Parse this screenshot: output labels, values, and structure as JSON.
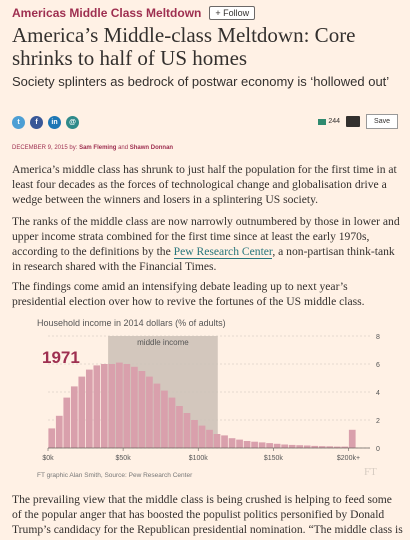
{
  "topic": "Americas Middle Class Meltdown",
  "follow_label": "+ Follow",
  "headline": "America’s Middle-class Meltdown: Core shrinks to half of US homes",
  "standfirst": "Society splinters as bedrock of postwar economy is ‘hollowed out’",
  "share_icons": [
    "twitter-icon",
    "facebook-icon",
    "linkedin-icon",
    "email-icon"
  ],
  "comment_count": "244",
  "save_label": "Save",
  "date": "DECEMBER 9, 2015",
  "by": "by:",
  "author1": "Sam Fleming",
  "and": "and",
  "author2": "Shawn Donnan",
  "paragraphs": {
    "p1": "America’s middle class has shrunk to just half the population for the first time in at least four decades as the forces of technological change and globalisation drive a wedge between the winners and losers in a splintering US society.",
    "p2a": "The ranks of the middle class are now narrowly outnumbered by those in lower and upper income strata combined for the first time since at least the early 1970s, according to the definitions by the ",
    "p2link": "Pew Research Center",
    "p2b": ", a non-partisan think-tank in research shared with the Financial Times.",
    "p3": "The findings come amid an intensifying debate leading up to next year’s presidential election over how to revive the fortunes of the US middle class.",
    "p4": "The prevailing view that the middle class is being crushed is helping to feed some of the popular anger that has boosted the populist politics personified by Donald Trump’s candidacy for the Republican presidential nomination. “The middle class is"
  },
  "colors": {
    "background": "#fff1e5",
    "topic": "#9e2f50",
    "bar": "#d9a0ac",
    "highlight": "#d3c7bd",
    "link": "#27757b"
  },
  "chart_data": {
    "type": "bar",
    "title": "Household income in 2014 dollars (% of adults)",
    "year_label": "1971",
    "highlight_label": "middle income",
    "highlight_range": [
      40,
      113
    ],
    "x_ticks": [
      "$0k",
      "$50k",
      "$100k",
      "$150k",
      "$200k+"
    ],
    "x_tick_values": [
      0,
      50,
      100,
      150,
      200
    ],
    "ylim": [
      0,
      8
    ],
    "y_ticks": [
      "0",
      "2",
      "4",
      "6",
      "8"
    ],
    "bin_width_k": 5,
    "values": [
      1.4,
      2.3,
      3.6,
      4.4,
      5.1,
      5.6,
      5.9,
      6.0,
      6.0,
      6.1,
      6.0,
      5.8,
      5.5,
      5.1,
      4.6,
      4.1,
      3.6,
      3.0,
      2.5,
      2.0,
      1.6,
      1.3,
      1.0,
      0.9,
      0.7,
      0.6,
      0.5,
      0.45,
      0.4,
      0.35,
      0.3,
      0.25,
      0.22,
      0.2,
      0.18,
      0.15,
      0.13,
      0.12,
      0.1,
      0.1,
      1.3
    ],
    "source": "FT graphic Alan Smith, Source: Pew Research Center",
    "watermark": "FT"
  }
}
